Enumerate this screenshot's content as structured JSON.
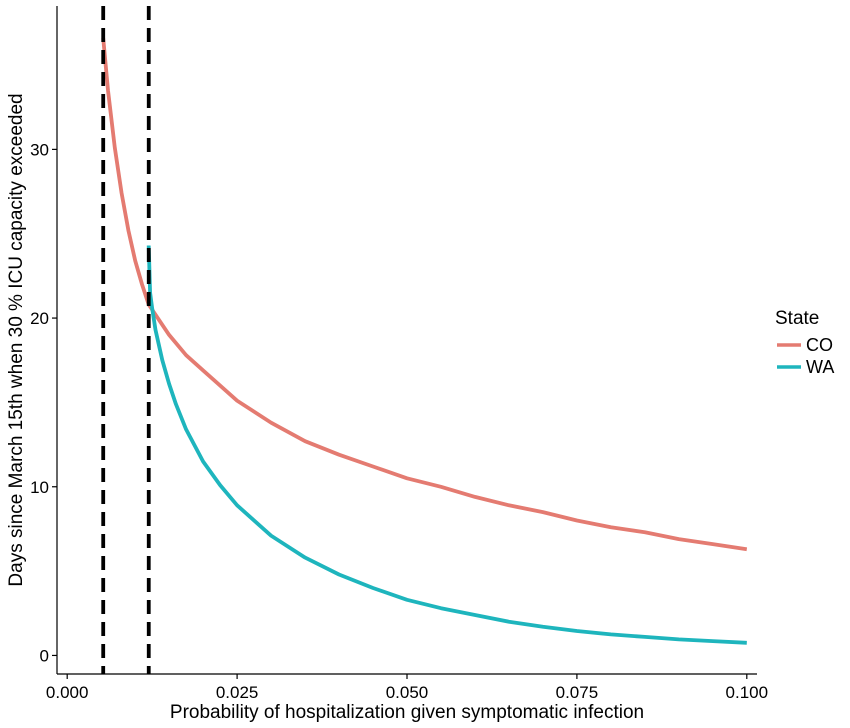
{
  "chart_data": {
    "type": "line",
    "xlabel": "Probability of hospitalization given symptomatic infection",
    "ylabel": "Days since March 15th when 30 % ICU capacity exceeded",
    "xlim": [
      -0.0015,
      0.1015
    ],
    "ylim": [
      -1.1,
      38.5
    ],
    "x_ticks": [
      0,
      0.025,
      0.05,
      0.075,
      0.1
    ],
    "x_tick_labels": [
      "0.000",
      "0.025",
      "0.050",
      "0.075",
      "0.100"
    ],
    "y_ticks": [
      0,
      10,
      20,
      30
    ],
    "y_tick_labels": [
      "0",
      "10",
      "20",
      "30"
    ],
    "grid": false,
    "legend": {
      "title": "State",
      "position": "right"
    },
    "vlines": [
      {
        "x": 0.0053,
        "style": "dashed",
        "color": "#000000"
      },
      {
        "x": 0.012,
        "style": "dashed",
        "color": "#000000"
      }
    ],
    "series": [
      {
        "name": "CO",
        "color": "#E47B71",
        "x": [
          0.0053,
          0.006,
          0.007,
          0.008,
          0.009,
          0.01,
          0.011,
          0.012,
          0.013,
          0.015,
          0.0175,
          0.02,
          0.025,
          0.03,
          0.035,
          0.04,
          0.045,
          0.05,
          0.055,
          0.06,
          0.065,
          0.07,
          0.075,
          0.08,
          0.085,
          0.09,
          0.095,
          0.1
        ],
        "y": [
          36.6,
          33.5,
          30.1,
          27.4,
          25.2,
          23.4,
          22.0,
          20.8,
          20.2,
          19.0,
          17.8,
          16.9,
          15.1,
          13.8,
          12.7,
          11.9,
          11.2,
          10.5,
          10.0,
          9.4,
          8.9,
          8.5,
          8.0,
          7.6,
          7.3,
          6.9,
          6.6,
          6.3
        ]
      },
      {
        "name": "WA",
        "color": "#1EB5BD",
        "x": [
          0.012,
          0.0122,
          0.0125,
          0.013,
          0.014,
          0.015,
          0.016,
          0.0175,
          0.02,
          0.0225,
          0.025,
          0.03,
          0.035,
          0.04,
          0.045,
          0.05,
          0.055,
          0.06,
          0.065,
          0.07,
          0.075,
          0.08,
          0.085,
          0.09,
          0.095,
          0.1
        ],
        "y": [
          24.3,
          21.5,
          20.6,
          19.3,
          17.5,
          16.1,
          14.9,
          13.4,
          11.5,
          10.1,
          8.9,
          7.1,
          5.8,
          4.8,
          4.0,
          3.3,
          2.8,
          2.4,
          2.0,
          1.7,
          1.45,
          1.25,
          1.1,
          0.95,
          0.85,
          0.75
        ]
      }
    ]
  }
}
